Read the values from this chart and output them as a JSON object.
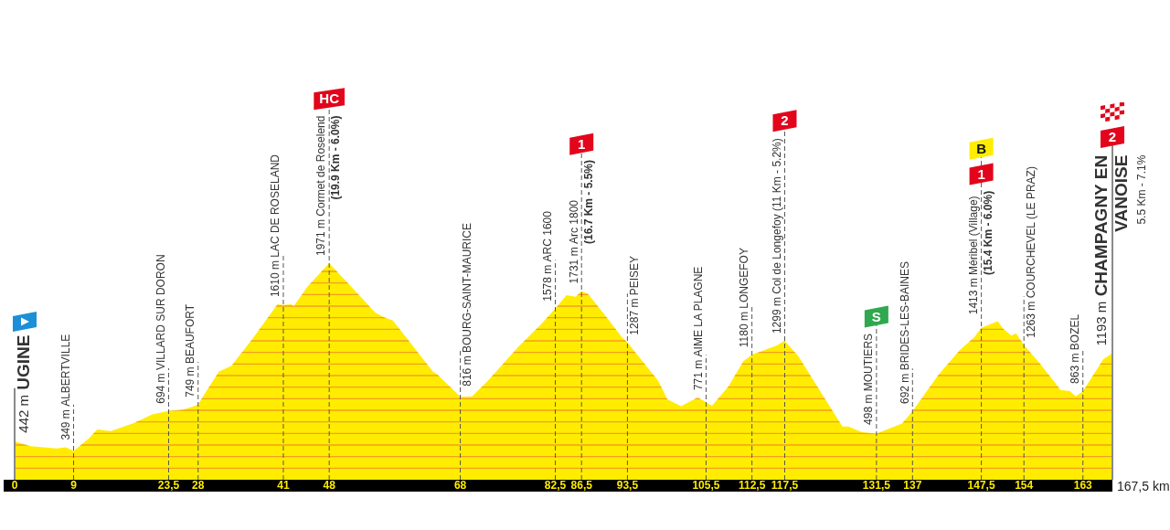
{
  "chart_data": {
    "type": "area",
    "color": "#ffec00",
    "x": [
      0,
      0.3,
      2.4,
      6.4,
      7.8,
      9,
      11.3,
      12.6,
      14.7,
      18.2,
      21,
      23.5,
      25.7,
      27.1,
      28,
      28.9,
      31.2,
      33.1,
      36.4,
      40.1,
      41,
      42.2,
      42.6,
      44.7,
      48,
      52.4,
      55,
      56.3,
      57.7,
      59.8,
      63.8,
      64.5,
      68,
      69.8,
      72.2,
      76.8,
      80.1,
      82.5,
      84.2,
      85.6,
      86.5,
      87.5,
      90.3,
      92.6,
      93.5,
      98.2,
      99.6,
      101.7,
      104.2,
      105.5,
      106.4,
      108.9,
      111.2,
      112.5,
      114.9,
      116.3,
      117.5,
      119.6,
      122.8,
      126.3,
      127.2,
      129.3,
      131.5,
      135.4,
      137,
      141,
      144.2,
      146.5,
      147.5,
      150,
      150.9,
      152.1,
      152.8,
      154,
      156.3,
      159.6,
      161,
      161.9,
      163,
      166.1,
      167.5
    ],
    "values": [
      442,
      425,
      390,
      370,
      380,
      349,
      455,
      535,
      520,
      590,
      665,
      694,
      705,
      730,
      749,
      835,
      1035,
      1085,
      1325,
      1615,
      1610,
      1615,
      1600,
      1770,
      1971,
      1705,
      1545,
      1505,
      1475,
      1325,
      1035,
      1010,
      816,
      820,
      955,
      1245,
      1430,
      1578,
      1695,
      1680,
      1731,
      1705,
      1505,
      1335,
      1287,
      955,
      795,
      735,
      810,
      771,
      740,
      905,
      1125,
      1180,
      1230,
      1260,
      1299,
      1165,
      875,
      560,
      560,
      510,
      498,
      585,
      692,
      1010,
      1220,
      1335,
      1413,
      1470,
      1400,
      1345,
      1365,
      1263,
      1115,
      875,
      865,
      820,
      863,
      1140,
      1193
    ],
    "value_labels": [
      "442 m",
      null,
      null,
      null,
      null,
      "349 m",
      null,
      null,
      null,
      null,
      null,
      "694 m",
      null,
      null,
      "749 m",
      null,
      null,
      null,
      null,
      null,
      "1610 m",
      null,
      null,
      null,
      "1971 m",
      null,
      null,
      null,
      null,
      null,
      null,
      null,
      "816 m",
      null,
      null,
      null,
      null,
      "1578 m",
      null,
      null,
      "1731 m",
      null,
      null,
      null,
      "1287 m",
      null,
      null,
      null,
      null,
      "771 m",
      null,
      null,
      null,
      "1180 m",
      null,
      null,
      "1299 m",
      null,
      null,
      null,
      null,
      null,
      "498 m",
      null,
      "692 m",
      null,
      null,
      null,
      "1413 m",
      null,
      null,
      null,
      null,
      "1263 m",
      null,
      null,
      null,
      null,
      "863 m",
      null,
      "1193 m"
    ],
    "xlim": [
      0,
      167.5
    ],
    "xticks": [
      0,
      9,
      {
        "value": 23.5,
        "label": "23,5"
      },
      28,
      41,
      48,
      68,
      {
        "value": 82.5,
        "label": "82,5"
      },
      {
        "value": 86.5,
        "label": "86,5"
      },
      {
        "value": 93.5,
        "label": "93,5"
      },
      {
        "value": 105.5,
        "label": "105,5"
      },
      {
        "value": 112.5,
        "label": "112,5"
      },
      {
        "value": 117.5,
        "label": "117,5"
      },
      {
        "value": 131.5,
        "label": "131,5"
      },
      137,
      {
        "value": 147.5,
        "label": "147,5"
      },
      154,
      163
    ],
    "xlabel": "167,5 km",
    "tick_labels": "x",
    "ref_lines": [
      {
        "axis": "x",
        "value": 0,
        "label": "UGINE",
        "color": "#8a8a8a"
      },
      {
        "axis": "x",
        "value": 9,
        "label": "ALBERTVILLE",
        "color": "#555555",
        "line_style": "dashed"
      },
      {
        "axis": "x",
        "value": 23.5,
        "label": "VILLARD SUR DORON",
        "color": "#555555",
        "line_style": "dashed"
      },
      {
        "axis": "x",
        "value": 28,
        "label": "BEAUFORT",
        "color": "#555555",
        "line_style": "dashed"
      },
      {
        "axis": "x",
        "value": 41,
        "label": "LAC DE ROSELAND",
        "color": "#555555",
        "line_style": "dashed"
      },
      {
        "axis": "x",
        "value": 48,
        "label": "Cormet de Roselend\n(19.9 Km - 6.0%)",
        "color": "#555555",
        "line_style": "dashed"
      },
      {
        "axis": "x",
        "value": 68,
        "label": "BOURG-SAINT-MAURICE",
        "color": "#555555",
        "line_style": "dashed"
      },
      {
        "axis": "x",
        "value": 82.5,
        "label": "ARC 1600",
        "color": "#555555",
        "line_style": "dashed"
      },
      {
        "axis": "x",
        "value": 86.5,
        "label": "Arc 1800\n(16.7 Km - 5.5%)",
        "color": "#555555",
        "line_style": "dashed"
      },
      {
        "axis": "x",
        "value": 93.5,
        "label": "PEISEY",
        "color": "#555555",
        "line_style": "dashed"
      },
      {
        "axis": "x",
        "value": 105.5,
        "label": "AIME LA PLAGNE",
        "color": "#555555",
        "line_style": "dashed"
      },
      {
        "axis": "x",
        "value": 112.5,
        "label": "LONGEFOY",
        "color": "#555555",
        "line_style": "dashed"
      },
      {
        "axis": "x",
        "value": 117.5,
        "label": "Col de Longefoy (11 Km - 5.2%)",
        "color": "#555555",
        "line_style": "dashed"
      },
      {
        "axis": "x",
        "value": 131.5,
        "label": "MOUTIERS",
        "color": "#555555",
        "line_style": "dashed"
      },
      {
        "axis": "x",
        "value": 137,
        "label": "BRIDES-LES-BAINES",
        "color": "#555555",
        "line_style": "dashed"
      },
      {
        "axis": "x",
        "value": 147.5,
        "label": "Méribel (Village)\n(15.4 Km - 6.0%)",
        "color": "#555555",
        "line_style": "dashed"
      },
      {
        "axis": "x",
        "value": 154,
        "label": "COURCHEVEL (LE PRAZ)",
        "color": "#555555",
        "line_style": "dashed"
      },
      {
        "axis": "x",
        "value": 163,
        "label": "BOZEL",
        "color": "#555555",
        "line_style": "dashed"
      },
      {
        "axis": "x",
        "value": 167.5,
        "label": "CHAMPAGNY EN\nVANOISE\n5.5 Km - 7.1%",
        "color": "#8a8a8a"
      },
      {
        "axis": "y",
        "value": 200,
        "color": "#f2a01e"
      },
      {
        "axis": "y",
        "value": 300,
        "color": "#f2a01e"
      },
      {
        "axis": "y",
        "value": 400,
        "color": "#f2a01e"
      },
      {
        "axis": "y",
        "value": 500,
        "color": "#f2a01e"
      },
      {
        "axis": "y",
        "value": 600,
        "color": "#f2a01e"
      },
      {
        "axis": "y",
        "value": 700,
        "color": "#f2a01e"
      },
      {
        "axis": "y",
        "value": 800,
        "color": "#f2a01e"
      },
      {
        "axis": "y",
        "value": 900,
        "color": "#f2a01e"
      },
      {
        "axis": "y",
        "value": 1000,
        "color": "#f2a01e"
      },
      {
        "axis": "y",
        "value": 1100,
        "color": "#f2a01e"
      },
      {
        "axis": "y",
        "value": 1200,
        "color": "#f2a01e"
      },
      {
        "axis": "y",
        "value": 1300,
        "color": "#f2a01e"
      },
      {
        "axis": "y",
        "value": 1400,
        "color": "#f2a01e"
      },
      {
        "axis": "y",
        "value": 1500,
        "color": "#f2a01e"
      },
      {
        "axis": "y",
        "value": 1600,
        "color": "#f2a01e"
      },
      {
        "axis": "y",
        "value": 1700,
        "color": "#f2a01e"
      },
      {
        "axis": "y",
        "value": 1800,
        "color": "#f2a01e"
      },
      {
        "axis": "y",
        "value": 1900,
        "color": "#f2a01e"
      }
    ],
    "annotations": [
      {
        "text": "HC",
        "x": 48,
        "y": 3390
      },
      {
        "text": "1",
        "x": 86.5,
        "y": 3000
      },
      {
        "text": "2",
        "x": 117.5,
        "y": 3200
      },
      {
        "text": "S",
        "x": 131.5,
        "y": 1510
      },
      {
        "text": "1",
        "x": 147.5,
        "y": 2740
      },
      {
        "text": "B",
        "x": 147.5,
        "y": 2960
      },
      {
        "text": "2",
        "x": 167.5,
        "y": 3060
      }
    ]
  }
}
